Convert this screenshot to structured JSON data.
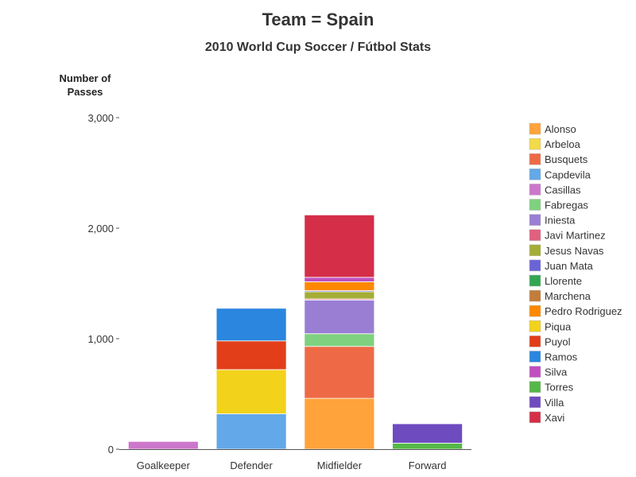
{
  "chart_data": {
    "type": "bar",
    "stacked": true,
    "title": "Team = Spain",
    "subtitle": "2010 World Cup Soccer / Fútbol Stats",
    "xlabel": "",
    "ylabel": "Number of Passes",
    "ylim": [
      0,
      3000
    ],
    "yticks": [
      0,
      1000,
      2000,
      3000
    ],
    "ytick_labels": [
      "0",
      "1,000",
      "2,000",
      "3,000"
    ],
    "grid": false,
    "legend_position": "right",
    "categories": [
      "Goalkeeper",
      "Defender",
      "Midfielder",
      "Forward"
    ],
    "series": [
      {
        "name": "Alonso",
        "color": "#FFA33A",
        "values": [
          0,
          0,
          460,
          0
        ]
      },
      {
        "name": "Arbeloa",
        "color": "#F2DA4A",
        "values": [
          0,
          0,
          0,
          0
        ]
      },
      {
        "name": "Busquets",
        "color": "#EE6A46",
        "values": [
          0,
          0,
          470,
          0
        ]
      },
      {
        "name": "Capdevila",
        "color": "#63A8E8",
        "values": [
          0,
          320,
          0,
          0
        ]
      },
      {
        "name": "Casillas",
        "color": "#CC77CC",
        "values": [
          70,
          0,
          0,
          0
        ]
      },
      {
        "name": "Fabregas",
        "color": "#7FD17F",
        "values": [
          0,
          0,
          115,
          0
        ]
      },
      {
        "name": "Iniesta",
        "color": "#9A7ED4",
        "values": [
          0,
          0,
          305,
          0
        ]
      },
      {
        "name": "Javi Martinez",
        "color": "#E0607E",
        "values": [
          0,
          0,
          10,
          0
        ]
      },
      {
        "name": "Jesus Navas",
        "color": "#A4AD35",
        "values": [
          0,
          0,
          65,
          0
        ]
      },
      {
        "name": "Juan Mata",
        "color": "#6A64D6",
        "values": [
          0,
          0,
          10,
          0
        ]
      },
      {
        "name": "Llorente",
        "color": "#33A653",
        "values": [
          0,
          0,
          0,
          0
        ]
      },
      {
        "name": "Marchena",
        "color": "#C27D3A",
        "values": [
          0,
          0,
          0,
          0
        ]
      },
      {
        "name": "Pedro Rodriguez",
        "color": "#FF8800",
        "values": [
          0,
          0,
          80,
          0
        ]
      },
      {
        "name": "Piqua",
        "color": "#F2D21A",
        "values": [
          0,
          400,
          0,
          0
        ]
      },
      {
        "name": "Puyol",
        "color": "#E23E1A",
        "values": [
          0,
          260,
          0,
          0
        ]
      },
      {
        "name": "Ramos",
        "color": "#2A86DE",
        "values": [
          0,
          295,
          0,
          0
        ]
      },
      {
        "name": "Silva",
        "color": "#BF4FBF",
        "values": [
          0,
          0,
          40,
          0
        ]
      },
      {
        "name": "Torres",
        "color": "#55B848",
        "values": [
          0,
          0,
          0,
          55
        ]
      },
      {
        "name": "Villa",
        "color": "#6E4BBF",
        "values": [
          0,
          0,
          0,
          175
        ]
      },
      {
        "name": "Xavi",
        "color": "#D42E49",
        "values": [
          0,
          0,
          565,
          0
        ]
      }
    ]
  }
}
